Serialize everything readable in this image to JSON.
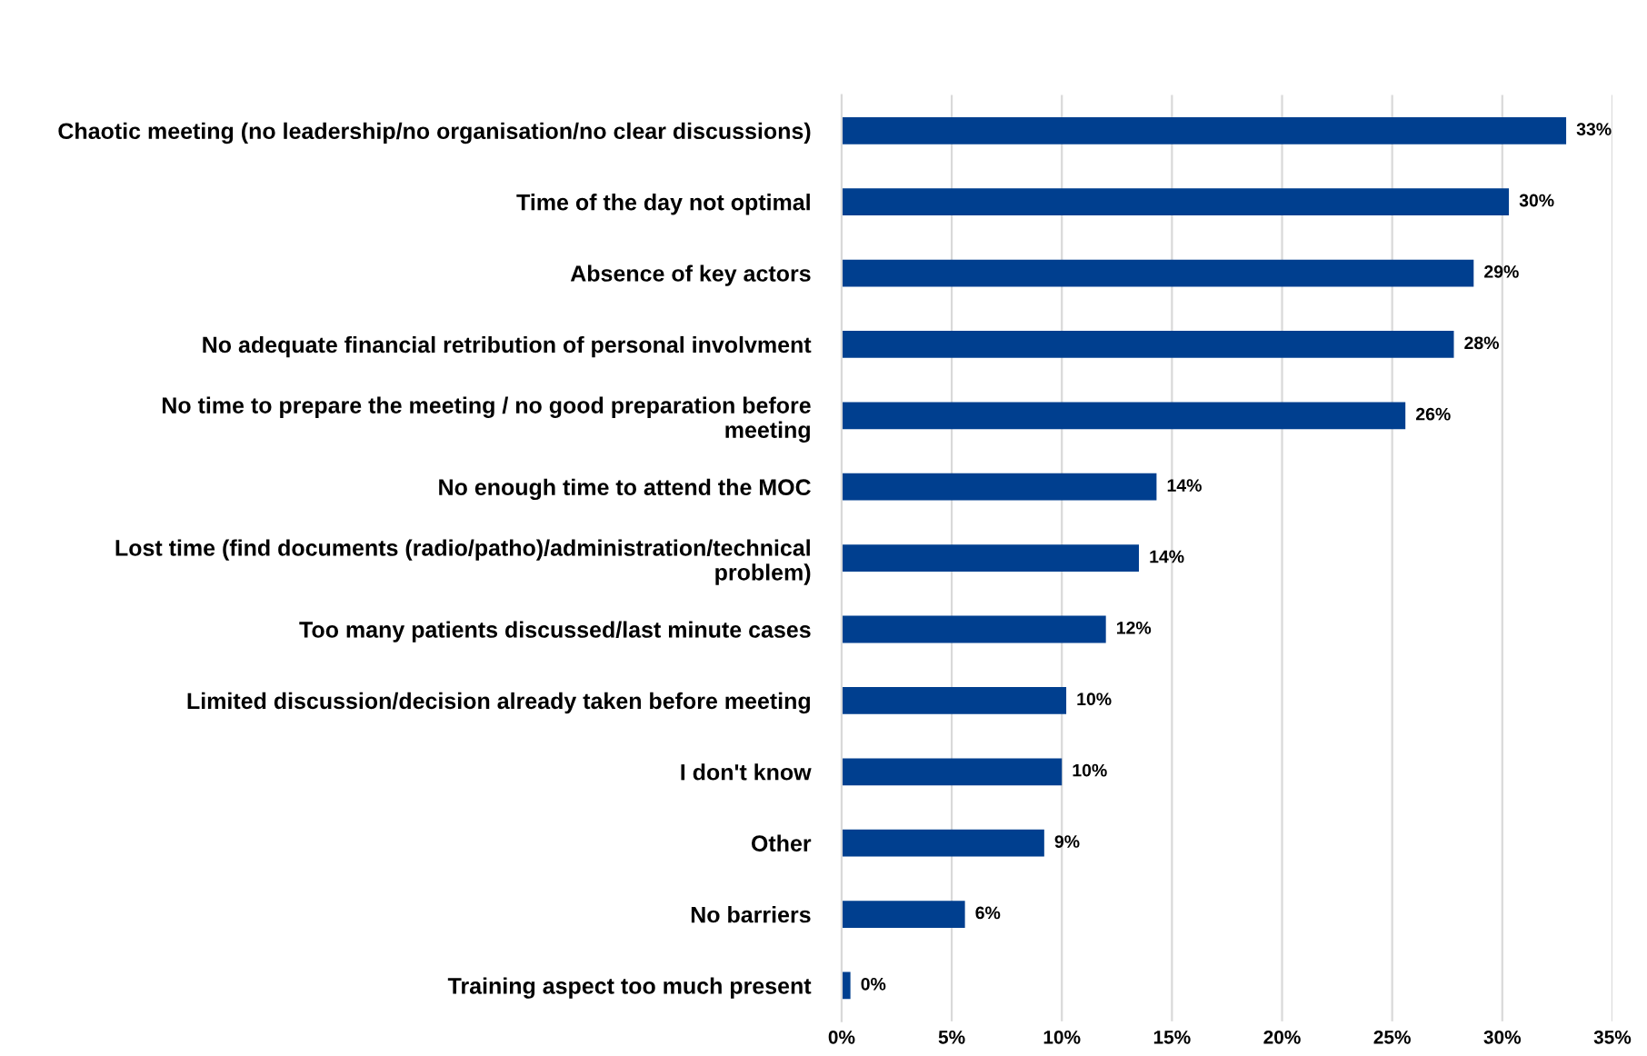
{
  "chart_data": {
    "type": "bar",
    "orientation": "horizontal",
    "categories": [
      "Chaotic meeting (no leadership/no organisation/no clear discussions)",
      "Time of the day not optimal",
      "Absence of key actors",
      "No adequate financial retribution of personal involvment",
      "No time to prepare the meeting / no good preparation before\nmeeting",
      "No enough time to attend the MOC",
      "Lost time (find documents (radio/patho)/administration/technical\nproblem)",
      "Too many patients discussed/last minute cases",
      "Limited discussion/decision already taken before meeting",
      "I don't know",
      "Other",
      "No barriers",
      "Training aspect too much present"
    ],
    "values": [
      32.9,
      30.3,
      28.7,
      27.8,
      25.6,
      14.3,
      13.5,
      12.0,
      10.2,
      10.0,
      9.2,
      5.6,
      0.4
    ],
    "value_labels": [
      "33%",
      "30%",
      "29%",
      "28%",
      "26%",
      "14%",
      "14%",
      "12%",
      "10%",
      "10%",
      "9%",
      "6%",
      "0%"
    ],
    "color": "#003f8f",
    "xlim": [
      0,
      35
    ],
    "xticks": [
      {
        "value": 0,
        "label": "0%"
      },
      {
        "value": 5,
        "label": "5%"
      },
      {
        "value": 10,
        "label": "10%"
      },
      {
        "value": 15,
        "label": "15%"
      },
      {
        "value": 20,
        "label": "20%"
      },
      {
        "value": 25,
        "label": "25%"
      },
      {
        "value": 30,
        "label": "30%"
      },
      {
        "value": 35,
        "label": "35%"
      }
    ],
    "grid": "x",
    "legend": false
  }
}
